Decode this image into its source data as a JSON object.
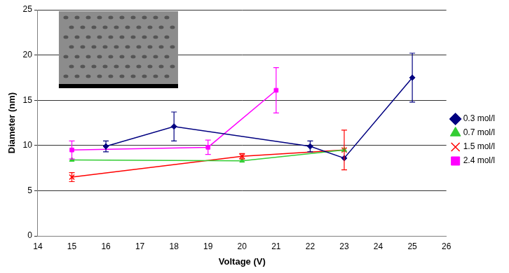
{
  "chart_data": {
    "type": "line",
    "x_label": "Voltage (V)",
    "y_label": "Diameter (nm)",
    "xlim": [
      14,
      26
    ],
    "xticks": [
      14,
      15,
      16,
      17,
      18,
      19,
      20,
      21,
      22,
      23,
      24,
      25,
      26
    ],
    "ylim": [
      0,
      25
    ],
    "yticks": [
      0,
      5,
      10,
      15,
      20,
      25
    ],
    "grid": true,
    "legend": "right",
    "series": [
      {
        "name": "0.3 mol/l",
        "color": "#000080",
        "marker": "diamond",
        "x": [
          16,
          18,
          22,
          23,
          25
        ],
        "values": [
          9.9,
          12.1,
          9.9,
          8.6,
          17.5
        ],
        "errors": [
          0.6,
          1.6,
          0.6,
          null,
          2.7
        ]
      },
      {
        "name": "0.7 mol/l",
        "color": "#33cc33",
        "marker": "triangle",
        "x": [
          15,
          20,
          23
        ],
        "values": [
          8.4,
          8.3,
          9.5
        ],
        "errors": [
          null,
          null,
          null
        ]
      },
      {
        "name": "1.5 mol/l",
        "color": "#ff0000",
        "marker": "cross",
        "x": [
          15,
          20,
          23
        ],
        "values": [
          6.5,
          8.8,
          9.5
        ],
        "errors": [
          0.5,
          0.3,
          2.2
        ]
      },
      {
        "name": "2.4 mol/l",
        "color": "#ff00ff",
        "marker": "square",
        "x": [
          15,
          19,
          21
        ],
        "values": [
          9.5,
          9.8,
          16.1
        ],
        "errors": [
          1.0,
          0.8,
          2.5
        ]
      }
    ]
  }
}
